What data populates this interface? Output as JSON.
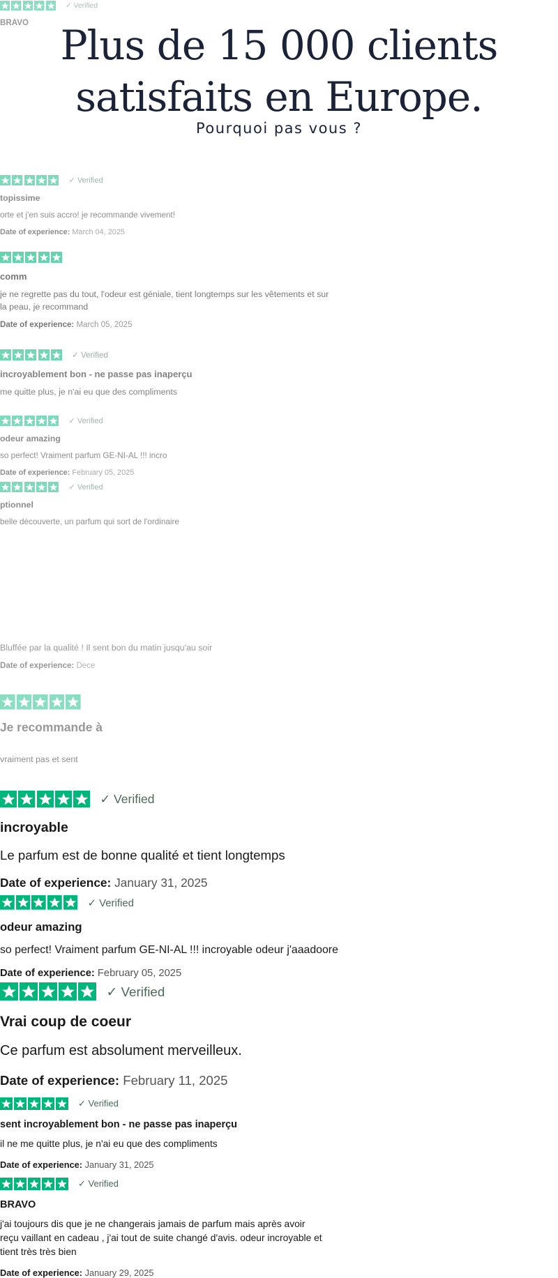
{
  "header": {
    "title": "Plus de 15 000 clients satisfaits en Europe.",
    "subtitle": "Pourquoi pas vous ?"
  },
  "reviews": [
    {
      "verified": "Verified",
      "title": "BRAVO"
    },
    {
      "verified": "Verified",
      "title": "topissime",
      "body": "orte et j'en suis accro! je recommande vivement!",
      "date_label": "Date of experience:",
      "date": "March 04, 2025"
    },
    {
      "title": "comm",
      "body": "je ne regrette pas du tout, l'odeur est géniale, tient longtemps sur les vêtements et sur la peau, je recommand",
      "date_label": "Date of experience:",
      "date": "March 05, 2025"
    },
    {
      "verified": "Verified",
      "title": "incroyablement bon - ne passe pas inaperçu",
      "body": "me quitte plus, je n'ai eu que des compliments"
    },
    {
      "verified": "Verified",
      "title": "odeur amazing",
      "body": "so perfect! Vraiment parfum GE-NI-AL !!! incro",
      "date_label": "Date of experience:",
      "date": "February 05, 2025"
    },
    {
      "verified": "Verified",
      "title": "ptionnel",
      "body": "belle découverte, un parfum qui sort de l'ordinaire"
    },
    {
      "body": "Bluffée par la qualité ! Il sent bon du matin jusqu'au soir",
      "date_label": "Date of experience:",
      "date": "Dece"
    },
    {
      "title": "Je recommande à"
    },
    {
      "body": "vraiment pas et sent"
    },
    {
      "verified": "Verified",
      "title": "incroyable",
      "body": "Le parfum est de bonne qualité et tient longtemps",
      "date_label": "Date of experience:",
      "date": "January 31, 2025"
    },
    {
      "verified": "Verified",
      "title": "odeur amazing",
      "body": "so perfect! Vraiment parfum GE-NI-AL !!! incroyable odeur j'aaadoore",
      "date_label": "Date of experience:",
      "date": "February 05, 2025"
    },
    {
      "verified": "Verified",
      "title": "Vrai coup de coeur",
      "body": "Ce parfum est absolument merveilleux.",
      "date_label": "Date of experience:",
      "date": "February 11, 2025"
    },
    {
      "verified": "Verified",
      "title": "sent incroyablement bon - ne passe pas inaperçu",
      "body": "il ne me quitte plus, je n'ai eu que des compliments",
      "date_label": "Date of experience:",
      "date": "January 31, 2025"
    },
    {
      "verified": "Verified",
      "title": "BRAVO",
      "body": "j'ai toujours dis que je ne changerais jamais de parfum mais après avoir reçu vaillant en cadeau , j'ai tout de suite changé d'avis. odeur incroyable et tient très très bien",
      "date_label": "Date of experience:",
      "date": "January 29, 2025"
    }
  ]
}
